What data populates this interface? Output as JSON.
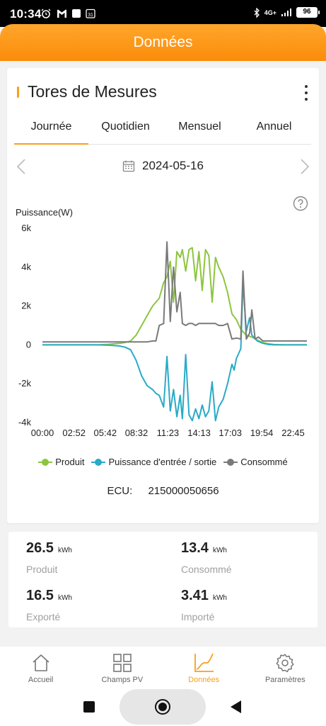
{
  "status_bar": {
    "time": "10:34",
    "network": "4G+",
    "battery": "96"
  },
  "header": {
    "title": "Données"
  },
  "card": {
    "title": "Tores de Mesures",
    "tabs": [
      {
        "label": "Journée",
        "active": true
      },
      {
        "label": "Quotidien",
        "active": false
      },
      {
        "label": "Mensuel",
        "active": false
      },
      {
        "label": "Annuel",
        "active": false
      }
    ],
    "date": "2024-05-16",
    "ecu_label": "ECU:",
    "ecu_value": "215000050656"
  },
  "colors": {
    "accent": "#f7a01c",
    "produit": "#8cc63e",
    "grid": "#29aac6",
    "consomme": "#7a7a7a"
  },
  "chart_data": {
    "type": "line",
    "ylabel": "Puissance(W)",
    "ylim": [
      -4000,
      6000
    ],
    "y_ticks": [
      6000,
      4000,
      2000,
      0,
      -2000,
      -4000
    ],
    "y_tick_labels": [
      "6k",
      "4k",
      "2k",
      "0",
      "-2k",
      "-4k"
    ],
    "xlim": [
      0,
      24
    ],
    "x_ticks": [
      0,
      2.867,
      5.7,
      8.533,
      11.383,
      14.217,
      17.05,
      19.9,
      22.75
    ],
    "x_tick_labels": [
      "00:00",
      "02:52",
      "05:42",
      "08:32",
      "11:23",
      "14:13",
      "17:03",
      "19:54",
      "22:45"
    ],
    "series": [
      {
        "name": "Produit",
        "color": "#8cc63e",
        "x": [
          0,
          5,
          6,
          7,
          7.5,
          8,
          8.5,
          9,
          9.5,
          10,
          10.3,
          10.6,
          11,
          11.3,
          11.6,
          11.9,
          12.2,
          12.5,
          12.7,
          13,
          13.3,
          13.6,
          13.9,
          14.2,
          14.5,
          14.8,
          15.1,
          15.4,
          15.7,
          16,
          16.4,
          16.8,
          17.2,
          17.6,
          18,
          18.5,
          19,
          19.5,
          20,
          20.5,
          21,
          22,
          23,
          24
        ],
        "y": [
          0,
          0,
          30,
          80,
          120,
          200,
          500,
          1000,
          1500,
          2000,
          2200,
          2400,
          3200,
          3500,
          4300,
          2200,
          4800,
          4500,
          4900,
          3800,
          4900,
          5000,
          3300,
          4800,
          2800,
          4900,
          4600,
          2200,
          4500,
          4000,
          3500,
          2700,
          1600,
          1300,
          800,
          500,
          400,
          250,
          120,
          60,
          20,
          0,
          0,
          0
        ]
      },
      {
        "name": "Puissance d'entrée / sortie",
        "color": "#29aac6",
        "x": [
          0,
          5,
          6,
          7,
          7.5,
          8,
          8.5,
          9,
          9.5,
          10,
          10.3,
          10.6,
          11,
          11.3,
          11.6,
          11.9,
          12.2,
          12.5,
          12.7,
          13,
          13.3,
          13.6,
          13.9,
          14.2,
          14.5,
          14.8,
          15.1,
          15.4,
          15.7,
          16,
          16.4,
          16.8,
          17.2,
          17.4,
          17.6,
          18,
          18.2,
          18.5,
          18.8,
          19,
          19.5,
          20,
          20.5,
          21,
          22,
          23,
          24
        ],
        "y": [
          0,
          0,
          -20,
          -60,
          -120,
          -250,
          -800,
          -1600,
          -2100,
          -2300,
          -2500,
          -2600,
          -3200,
          -600,
          -3400,
          -2300,
          -3700,
          -2600,
          -3800,
          -500,
          -3600,
          -3900,
          -3300,
          -3800,
          -3100,
          -3700,
          -3400,
          -1900,
          -3900,
          -3200,
          -2800,
          -2000,
          -1000,
          -1300,
          -700,
          -200,
          3200,
          700,
          1400,
          500,
          200,
          80,
          20,
          0,
          0,
          0,
          0
        ]
      },
      {
        "name": "Consommé",
        "color": "#7a7a7a",
        "x": [
          0,
          2,
          4,
          6,
          7,
          8,
          9,
          9.5,
          10,
          10.3,
          10.6,
          11,
          11.3,
          11.6,
          11.9,
          12.2,
          12.5,
          12.7,
          13,
          13.3,
          13.6,
          13.9,
          14.2,
          14.5,
          14.8,
          15.1,
          15.4,
          15.7,
          16,
          16.4,
          16.8,
          17.2,
          17.6,
          18,
          18.2,
          18.5,
          18.8,
          19,
          19.3,
          19.6,
          20,
          21,
          22,
          23,
          24
        ],
        "y": [
          150,
          150,
          150,
          150,
          150,
          150,
          150,
          150,
          200,
          200,
          1000,
          1100,
          5300,
          1200,
          4000,
          1700,
          2700,
          1100,
          1000,
          1100,
          1100,
          1000,
          1100,
          1100,
          1100,
          1100,
          1100,
          1100,
          1000,
          1000,
          1100,
          300,
          350,
          300,
          3800,
          300,
          600,
          1800,
          300,
          400,
          200,
          200,
          200,
          200,
          200
        ]
      }
    ],
    "legend_position": "bottom",
    "grid": false
  },
  "summary": [
    {
      "value": "26.5",
      "unit": "kWh",
      "label": "Produit"
    },
    {
      "value": "13.4",
      "unit": "kWh",
      "label": "Consommé"
    },
    {
      "value": "16.5",
      "unit": "kWh",
      "label": "Exporté"
    },
    {
      "value": "3.41",
      "unit": "kWh",
      "label": "Importé"
    }
  ],
  "nav": [
    {
      "label": "Accueil",
      "icon": "home-icon"
    },
    {
      "label": "Champs PV",
      "icon": "grid-icon"
    },
    {
      "label": "Données",
      "icon": "chart-icon",
      "active": true
    },
    {
      "label": "Paramètres",
      "icon": "gear-icon"
    }
  ]
}
